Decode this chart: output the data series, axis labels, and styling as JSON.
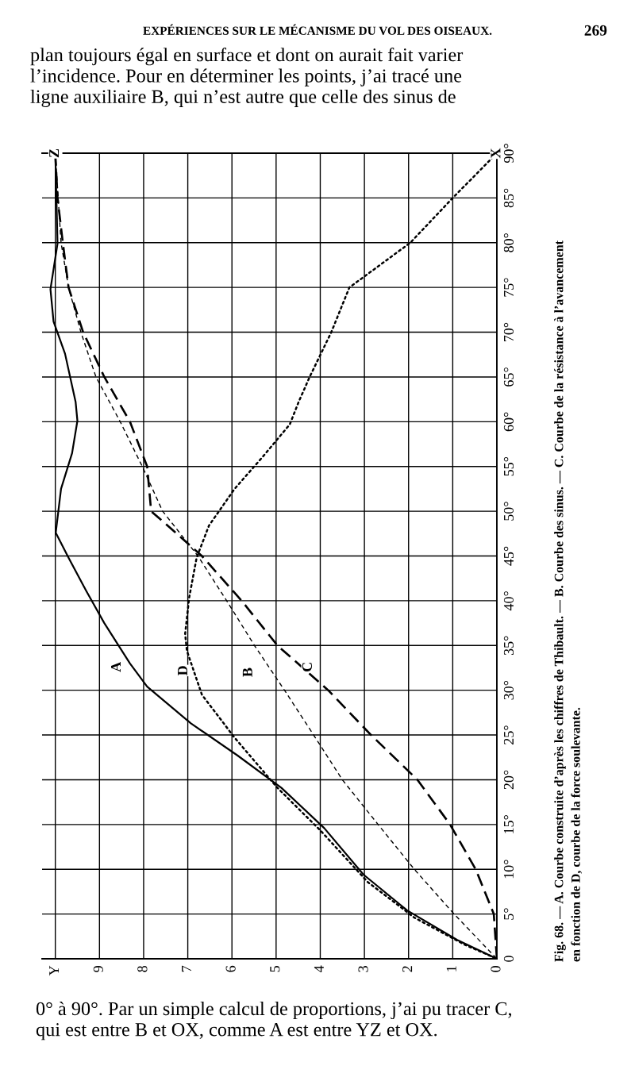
{
  "chart_data": {
    "type": "line",
    "xlim": [
      10.3,
      0
    ],
    "ylim": [
      0,
      90
    ],
    "xticks": [
      0,
      1,
      2,
      3,
      4,
      5,
      6,
      7,
      8,
      9,
      {
        "value": 10,
        "label": "Y"
      }
    ],
    "yticks": [
      0,
      {
        "value": 5,
        "label": "5°"
      },
      {
        "value": 10,
        "label": "10°"
      },
      {
        "value": 15,
        "label": "15°"
      },
      {
        "value": 20,
        "label": "20°"
      },
      {
        "value": 25,
        "label": "25°"
      },
      {
        "value": 30,
        "label": "30°"
      },
      {
        "value": 35,
        "label": "35°"
      },
      {
        "value": 40,
        "label": "40°"
      },
      {
        "value": 45,
        "label": "45°"
      },
      {
        "value": 50,
        "label": "50°"
      },
      {
        "value": 55,
        "label": "55°"
      },
      {
        "value": 60,
        "label": "60°"
      },
      {
        "value": 65,
        "label": "65°"
      },
      {
        "value": 70,
        "label": "70°"
      },
      {
        "value": 75,
        "label": "75°"
      },
      {
        "value": 80,
        "label": "80°"
      },
      {
        "value": 85,
        "label": "85°"
      },
      {
        "value": 90,
        "label": "90°"
      }
    ],
    "grid": true,
    "series": [
      {
        "color": "#000000",
        "line_style": "solid",
        "x": [
          10,
          9.95,
          10.11,
          10.04,
          9.78,
          9.54,
          9.5,
          9.62,
          9.87,
          9.99,
          9.7,
          9.3,
          8.89,
          8.31,
          7.92,
          6.93,
          5.87,
          4.88,
          3.91,
          3.02,
          2.03,
          0.9,
          0
        ],
        "values": [
          90,
          79.9,
          74.8,
          71.2,
          67.6,
          62.2,
          60.1,
          56.5,
          52.5,
          47.6,
          44.8,
          41.1,
          37.5,
          33,
          30.4,
          26.3,
          22.7,
          19.1,
          14.6,
          9.4,
          5.4,
          2.1,
          0
        ]
      },
      {
        "color": "#000000",
        "line_style": "dashed",
        "x": [
          10,
          9.87,
          9.7,
          9.42,
          9.08,
          8.53,
          8.03,
          7.57,
          6.77,
          6.12,
          5.49,
          4.81,
          4.15,
          3.5,
          2.69,
          1.87,
          0.97,
          0
        ],
        "values": [
          90,
          80,
          75,
          70,
          65,
          60,
          55,
          50,
          45,
          40,
          35,
          30,
          25,
          20,
          15,
          10,
          5,
          0
        ]
      },
      {
        "color": "#000000",
        "line_style": "dashed",
        "x": [
          10,
          9.95,
          9.83,
          9.7,
          9.37,
          8.89,
          8.31,
          7.92,
          7.83,
          7.25,
          6.68,
          5.78,
          4.97,
          3.82,
          2.85,
          1.8,
          1.06,
          0.48,
          0.07,
          0
        ],
        "values": [
          90,
          85,
          80,
          75,
          70,
          65,
          60,
          55,
          50,
          47.5,
          45,
          40,
          35,
          30,
          25,
          20,
          15,
          10,
          5,
          0
        ]
      },
      {
        "color": "#000000",
        "line_style": "dotted",
        "x": [
          0,
          1.0,
          1.96,
          3.34,
          3.75,
          4.24,
          4.49,
          4.69,
          5.3,
          5.94,
          6.52,
          6.8,
          6.97,
          7.06,
          7.02,
          6.68,
          5.94,
          4.97,
          3.99,
          2.93,
          1.87,
          0.74,
          0
        ],
        "values": [
          90,
          85,
          80,
          75,
          70,
          65,
          62.2,
          59.7,
          56.1,
          52.5,
          48.4,
          44.8,
          40.3,
          36.3,
          34.4,
          29.5,
          24.7,
          19.1,
          14.3,
          8.6,
          4.6,
          1.6,
          0
        ]
      }
    ],
    "annotations": [
      "EXPÉRIENCES SUR LE MÉCANISME DU VOL DES OISEAUX.",
      "269",
      "plan toujours égal en surface et dont on aurait fait varier\nl’incidence. Pour en déterminer les points, j’ai tracé une\nligne auxiliaire B, qui n’est autre que celle des sinus de",
      "0° à 90°. Par un simple calcul de proportions, j’ai pu tracer C,\nqui est entre B et OX, comme A est entre YZ et OX.",
      "Fig. 68. — A. Courbe construite d’après les chiffres de Thibault. — B. Courbe des sinus. — C. Courbe de la résistance à l’avancement\nen fonction de D, courbe de la force soulevante.",
      {
        "text": "A",
        "x": 8.6,
        "y": 32.6
      },
      {
        "text": "D",
        "x": 7.09,
        "y": 32.2
      },
      {
        "text": "B",
        "x": 5.62,
        "y": 32.0
      },
      {
        "text": "C",
        "x": 4.27,
        "y": 32.6
      },
      {
        "text": "Z",
        "x": 10,
        "y": 90
      },
      {
        "text": "X",
        "x": 0,
        "y": 90
      }
    ]
  }
}
